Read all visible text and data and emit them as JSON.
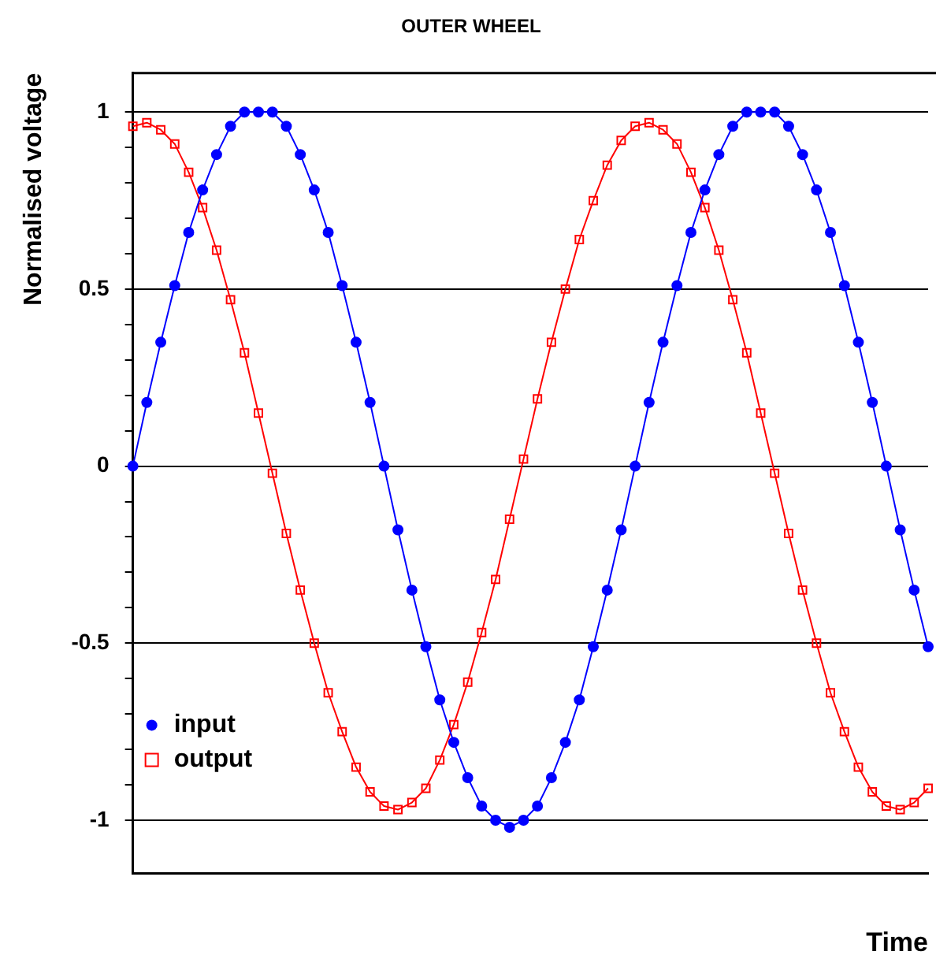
{
  "chart_data": {
    "type": "line",
    "title": "OUTER WHEEL",
    "xlabel": "Time",
    "ylabel": "Normalised voltage",
    "categories": [
      null,
      null,
      null,
      null,
      null,
      null,
      null,
      null,
      null,
      null,
      null,
      null,
      null,
      null,
      null,
      null,
      null,
      null,
      null,
      null,
      null,
      null,
      null,
      null,
      null,
      null,
      null,
      null,
      null,
      null,
      null,
      null,
      null,
      null,
      null,
      null,
      null,
      null,
      null,
      null,
      null,
      null,
      null,
      null,
      null,
      null,
      null,
      null,
      null,
      null,
      null,
      null,
      null,
      null,
      null,
      null,
      null,
      null
    ],
    "series": [
      {
        "name": "input",
        "color": "#0000ff",
        "marker": "circle",
        "values": [
          0,
          0.18,
          0.35,
          0.51,
          0.66,
          0.78,
          0.88,
          0.96,
          1.0,
          1.0,
          1.0,
          0.96,
          0.88,
          0.78,
          0.66,
          0.51,
          0.35,
          0.18,
          0,
          -0.18,
          -0.35,
          -0.51,
          -0.66,
          -0.78,
          -0.88,
          -0.96,
          -1.0,
          -1.02,
          -1.0,
          -0.96,
          -0.88,
          -0.78,
          -0.66,
          -0.51,
          -0.35,
          -0.18,
          0,
          0.18,
          0.35,
          0.51,
          0.66,
          0.78,
          0.88,
          0.96,
          1.0,
          1.0,
          1.0,
          0.96,
          0.88,
          0.78,
          0.66,
          0.51,
          0.35,
          0.18,
          0,
          -0.18,
          -0.35,
          -0.51
        ]
      },
      {
        "name": "output",
        "color": "#ff0000",
        "marker": "square",
        "values": [
          0.96,
          0.97,
          0.95,
          0.91,
          0.83,
          0.73,
          0.61,
          0.47,
          0.32,
          0.15,
          -0.02,
          -0.19,
          -0.35,
          -0.5,
          -0.64,
          -0.75,
          -0.85,
          -0.92,
          -0.96,
          -0.97,
          -0.95,
          -0.91,
          -0.83,
          -0.73,
          -0.61,
          -0.47,
          -0.32,
          -0.15,
          0.02,
          0.19,
          0.35,
          0.5,
          0.64,
          0.75,
          0.85,
          0.92,
          0.96,
          0.97,
          0.95,
          0.91,
          0.83,
          0.73,
          0.61,
          0.47,
          0.32,
          0.15,
          -0.02,
          -0.19,
          -0.35,
          -0.5,
          -0.64,
          -0.75,
          -0.85,
          -0.92,
          -0.96,
          -0.97,
          -0.95,
          -0.91
        ]
      }
    ],
    "ylim": [
      -1.15,
      1.11
    ],
    "yticks": [
      -1,
      {
        "value": -0.9,
        "label": null
      },
      {
        "value": -0.8,
        "label": null
      },
      {
        "value": -0.7,
        "label": null
      },
      {
        "value": -0.6,
        "label": null
      },
      -0.5,
      {
        "value": -0.4,
        "label": null
      },
      {
        "value": -0.3,
        "label": null
      },
      {
        "value": -0.2,
        "label": null
      },
      {
        "value": -0.1,
        "label": null
      },
      0,
      {
        "value": 0.1,
        "label": null
      },
      {
        "value": 0.2,
        "label": null
      },
      {
        "value": 0.3,
        "label": null
      },
      {
        "value": 0.4,
        "label": null
      },
      0.5,
      {
        "value": 0.6,
        "label": null
      },
      {
        "value": 0.7,
        "label": null
      },
      {
        "value": 0.8,
        "label": null
      },
      {
        "value": 0.9,
        "label": null
      },
      1
    ],
    "grid": "y",
    "legend": "bottom left",
    "line_style": "solid"
  }
}
